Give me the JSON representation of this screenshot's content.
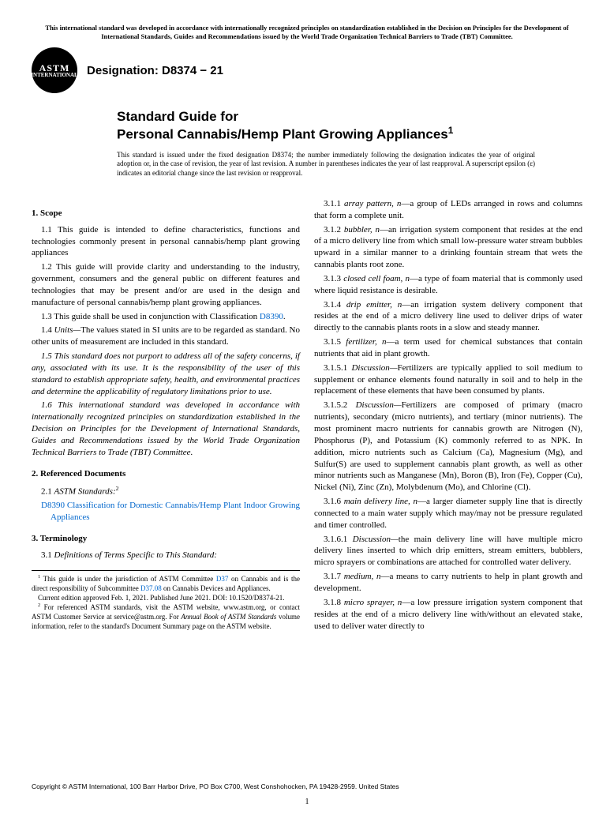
{
  "top_notice": "This international standard was developed in accordance with internationally recognized principles on standardization established in the Decision on Principles for the Development of International Standards, Guides and Recommendations issued by the World Trade Organization Technical Barriers to Trade (TBT) Committee.",
  "logo": {
    "main": "ASTM",
    "sub": "INTERNATIONAL"
  },
  "designation": "Designation: D8374 − 21",
  "title": {
    "line1": "Standard Guide for",
    "line2": "Personal Cannabis/Hemp Plant Growing Appliances"
  },
  "title_super": "1",
  "issuance": "This standard is issued under the fixed designation D8374; the number immediately following the designation indicates the year of original adoption or, in the case of revision, the year of last revision. A number in parentheses indicates the year of last reapproval. A superscript epsilon (ε) indicates an editorial change since the last revision or reapproval.",
  "sections": {
    "scope": {
      "heading": "1. Scope",
      "p1": "1.1 This guide is intended to define characteristics, functions and technologies commonly present in personal cannabis/hemp plant growing appliances",
      "p2": "1.2 This guide will provide clarity and understanding to the industry, government, consumers and the general public on different features and technologies that may be present and/or are used in the design and manufacture of personal cannabis/hemp plant growing appliances.",
      "p3a": "1.3 This guide shall be used in conjunction with Classification ",
      "p3_link": "D8390",
      "p3b": ".",
      "p4_lead": "1.4 ",
      "p4_term": "Units—",
      "p4_body": "The values stated in SI units are to be regarded as standard. No other units of measurement are included in this standard.",
      "p5": "1.5 This standard does not purport to address all of the safety concerns, if any, associated with its use. It is the responsibility of the user of this standard to establish appropriate safety, health, and environmental practices and determine the applicability of regulatory limitations prior to use.",
      "p6": "1.6 This international standard was developed in accordance with internationally recognized principles on standardization established in the Decision on Principles for the Development of International Standards, Guides and Recommendations issued by the World Trade Organization Technical Barriers to Trade (TBT) Committee."
    },
    "refs": {
      "heading": "2. Referenced Documents",
      "p1a": "2.1 ",
      "p1_em": "ASTM Standards:",
      "p1_sup": "2",
      "item_link": "D8390",
      "item_text": " Classification for Domestic Cannabis/Hemp Plant Indoor Growing Appliances"
    },
    "terms": {
      "heading": "3. Terminology",
      "p1_lead": "3.1 ",
      "p1_em": "Definitions of Terms Specific to This Standard:",
      "d1_num": "3.1.1 ",
      "d1_term": "array pattern, n",
      "d1_body": "—a group of LEDs arranged in rows and columns that form a complete unit.",
      "d2_num": "3.1.2 ",
      "d2_term": "bubbler, n",
      "d2_body": "—an irrigation system component that resides at the end of a micro delivery line from which small low-pressure water stream bubbles upward in a similar manner to a drinking fountain stream that wets the cannabis plants root zone.",
      "d3_num": "3.1.3 ",
      "d3_term": "closed cell foam, n",
      "d3_body": "—a type of foam material that is commonly used where liquid resistance is desirable.",
      "d4_num": "3.1.4 ",
      "d4_term": "drip emitter, n",
      "d4_body": "—an irrigation system delivery component that resides at the end of a micro delivery line used to deliver drips of water directly to the cannabis plants roots in a slow and steady manner.",
      "d5_num": "3.1.5 ",
      "d5_term": "fertilizer, n",
      "d5_body": "—a term used for chemical substances that contain nutrients that aid in plant growth.",
      "d51_num": "3.1.5.1 ",
      "d51_term": "Discussion—",
      "d51_body": "Fertilizers are typically applied to soil medium to supplement or enhance elements found naturally in soil and to help in the replacement of these elements that have been consumed by plants.",
      "d52_num": "3.1.5.2 ",
      "d52_term": "Discussion—",
      "d52_body": "Fertilizers are composed of primary (macro nutrients), secondary (micro nutrients), and tertiary (minor nutrients). The most prominent macro nutrients for cannabis growth are Nitrogen (N), Phosphorus (P), and Potassium (K) commonly referred to as NPK. In addition, micro nutrients such as Calcium (Ca), Magnesium (Mg), and Sulfur(S) are used to supplement cannabis plant growth, as well as other minor nutrients such as Manganese (Mn), Boron (B), Iron (Fe), Copper (Cu), Nickel (Ni), Zinc (Zn), Molybdenum (Mo), and Chlorine (Cl).",
      "d6_num": "3.1.6 ",
      "d6_term": "main delivery line, n",
      "d6_body": "—a larger diameter supply line that is directly connected to a main water supply which may/may not be pressure regulated and timer controlled.",
      "d61_num": "3.1.6.1 ",
      "d61_term": "Discussion—",
      "d61_body": "the main delivery line will have multiple micro delivery lines inserted to which drip emitters, stream emitters, bubblers, micro sprayers or combinations are attached for controlled water delivery.",
      "d7_num": "3.1.7 ",
      "d7_term": "medium, n",
      "d7_body": "—a means to carry nutrients to help in plant growth and development.",
      "d8_num": "3.1.8 ",
      "d8_term": "micro sprayer, n",
      "d8_body": "—a low pressure irrigation system component that resides at the end of a micro delivery line with/without an elevated stake, used to deliver water directly to"
    }
  },
  "footnotes": {
    "f1a": " This guide is under the jurisdiction of ASTM Committee ",
    "f1_link1": "D37",
    "f1b": " on Cannabis and is the direct responsibility of Subcommittee ",
    "f1_link2": "D37.08",
    "f1c": " on Cannabis Devices and Appliances.",
    "f1d": "Current edition approved Feb. 1, 2021. Published June 2021. DOI: 10.1520/D8374-21.",
    "f2a": " For referenced ASTM standards, visit the ASTM website, www.astm.org, or contact ASTM Customer Service at service@astm.org. For ",
    "f2_em": "Annual Book of ASTM Standards",
    "f2b": " volume information, refer to the standard's Document Summary page on the ASTM website."
  },
  "copyright": "Copyright © ASTM International, 100 Barr Harbor Drive, PO Box C700, West Conshohocken, PA 19428-2959. United States",
  "page_number": "1"
}
